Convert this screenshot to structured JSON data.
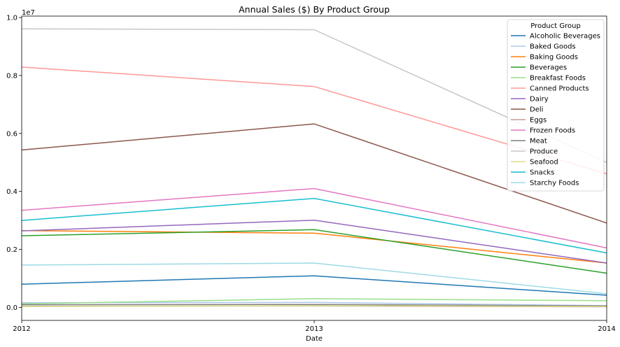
{
  "chart_data": {
    "type": "line",
    "title": "Annual Sales ($) By Product Group",
    "xlabel": "Date",
    "ylabel": "",
    "x": [
      "2012",
      "2013",
      "2014"
    ],
    "xlim": [
      2012,
      2014
    ],
    "ylim": [
      -0.45,
      10.05
    ],
    "y_scale_label": "1e7",
    "y_ticks": [
      "0.0",
      "0.2",
      "0.4",
      "0.6",
      "0.8",
      "1.0"
    ],
    "grid": false,
    "legend": {
      "title": "Product Group",
      "placement": "top-right"
    },
    "series": [
      {
        "name": "Alcoholic Beverages",
        "color": "#1f77b4",
        "values": [
          0.8,
          1.09,
          0.42
        ]
      },
      {
        "name": "Baked Goods",
        "color": "#aec7e8",
        "values": [
          0.16,
          0.17,
          0.06
        ]
      },
      {
        "name": "Baking Goods",
        "color": "#ff7f0e",
        "values": [
          2.65,
          2.56,
          1.53
        ]
      },
      {
        "name": "Beverages",
        "color": "#2ca02c",
        "values": [
          2.47,
          2.68,
          1.18
        ]
      },
      {
        "name": "Breakfast Foods",
        "color": "#98df8a",
        "values": [
          0.12,
          0.3,
          0.23
        ]
      },
      {
        "name": "Canned Products",
        "color": "#ff9896",
        "values": [
          8.29,
          7.62,
          4.61
        ]
      },
      {
        "name": "Dairy",
        "color": "#9467bd",
        "values": [
          2.64,
          3.01,
          1.53
        ]
      },
      {
        "name": "Deli",
        "color": "#8c564b",
        "values": [
          5.43,
          6.33,
          2.91
        ]
      },
      {
        "name": "Eggs",
        "color": "#c49c94",
        "values": [
          0.04,
          0.05,
          0.02
        ]
      },
      {
        "name": "Frozen Foods",
        "color": "#e377c2",
        "values": [
          3.35,
          4.1,
          2.05
        ]
      },
      {
        "name": "Meat",
        "color": "#7f7f7f",
        "values": [
          0.09,
          0.1,
          0.05
        ]
      },
      {
        "name": "Produce",
        "color": "#c7c7c7",
        "values": [
          9.61,
          9.58,
          5.0
        ]
      },
      {
        "name": "Seafood",
        "color": "#dbdb8d",
        "values": [
          0.03,
          0.06,
          0.03
        ]
      },
      {
        "name": "Snacks",
        "color": "#17becf",
        "values": [
          3.0,
          3.76,
          1.88
        ]
      },
      {
        "name": "Starchy Foods",
        "color": "#9edae5",
        "values": [
          1.46,
          1.53,
          0.47
        ]
      }
    ]
  }
}
